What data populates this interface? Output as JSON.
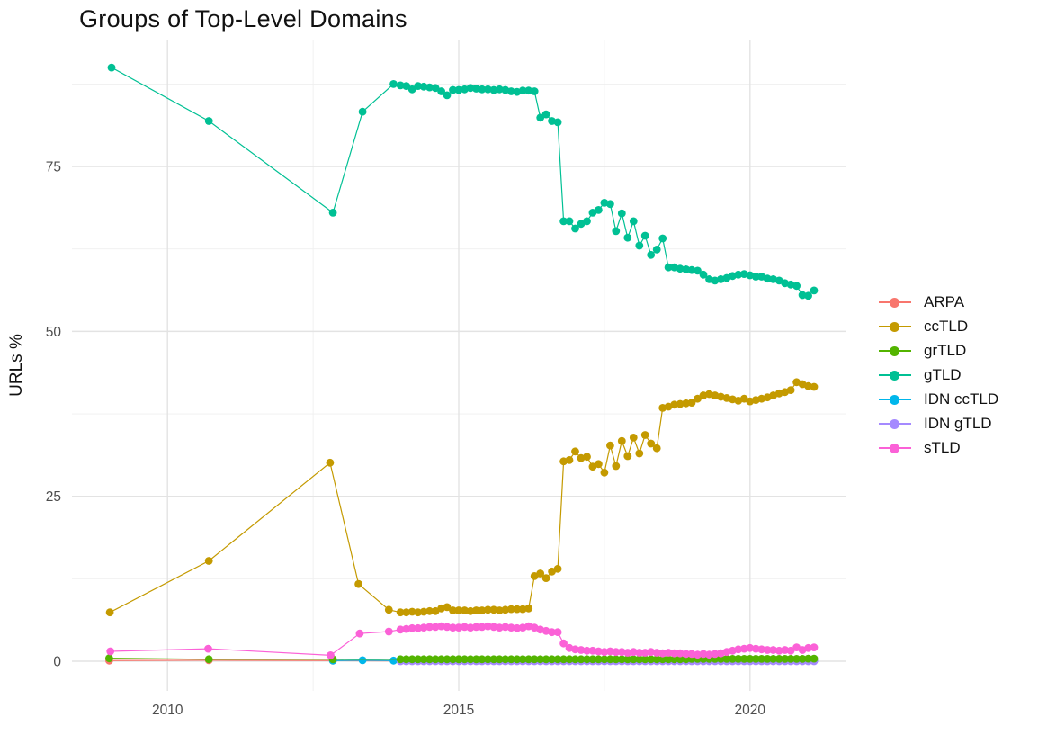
{
  "page": {
    "background": "#FFFFFF"
  },
  "style": {
    "grid_major_color": "#E3E3E3",
    "grid_minor_color": "#EFEFEF",
    "tick_label_color": "#4D4D4D",
    "text_color": "#111111"
  },
  "chart_data": {
    "type": "line",
    "title": "Groups of Top-Level Domains",
    "xlabel": "",
    "ylabel": "URLs %",
    "x_ticks": [
      2010,
      2015,
      2020
    ],
    "x_minor_gridlines": [
      2012.5,
      2017.5
    ],
    "y_ticks": [
      0,
      25,
      50,
      75
    ],
    "y_minor_gridlines": [
      12.5,
      37.5,
      62.5,
      87.5
    ],
    "xlim": [
      2008.36,
      2021.64
    ],
    "ylim": [
      -4.5,
      94.1
    ],
    "grid": true,
    "legend_position": "right",
    "point_shape": "circle",
    "dense_x_start": 2014.0,
    "dense_x_step": 0.1,
    "dense_x_end": 2021.1,
    "draw_order": [
      "ARPA",
      "IDN ccTLD",
      "IDN gTLD",
      "grTLD",
      "ccTLD",
      "gTLD",
      "sTLD"
    ],
    "series": [
      {
        "name": "ARPA",
        "color": "#F8766D",
        "early_points": [
          [
            2009.0,
            0.1
          ],
          [
            2010.71,
            0.15
          ],
          [
            2012.84,
            0.1
          ]
        ],
        "dense_constant": 0.05
      },
      {
        "name": "ccTLD",
        "color": "#C49A00",
        "early_points": [
          [
            2009.01,
            7.4
          ],
          [
            2010.71,
            15.2
          ],
          [
            2012.79,
            30.1
          ],
          [
            2013.28,
            11.7
          ],
          [
            2013.8,
            7.8
          ]
        ],
        "dense_values": [
          7.4,
          7.4,
          7.5,
          7.4,
          7.5,
          7.6,
          7.6,
          8.0,
          8.2,
          7.7,
          7.7,
          7.7,
          7.6,
          7.7,
          7.7,
          7.8,
          7.8,
          7.7,
          7.8,
          7.9,
          7.9,
          7.9,
          8.0,
          12.9,
          13.3,
          12.6,
          13.6,
          14.0,
          30.3,
          30.5,
          31.8,
          30.8,
          31.0,
          29.5,
          29.9,
          28.6,
          32.7,
          29.6,
          33.4,
          31.1,
          33.9,
          31.5,
          34.3,
          33.0,
          32.3,
          38.4,
          38.6,
          38.9,
          39.0,
          39.1,
          39.2,
          39.8,
          40.3,
          40.5,
          40.3,
          40.1,
          39.9,
          39.7,
          39.5,
          39.8,
          39.4,
          39.6,
          39.8,
          40.0,
          40.3,
          40.6,
          40.8,
          41.1,
          42.3,
          42.0,
          41.7,
          41.6
        ]
      },
      {
        "name": "grTLD",
        "color": "#53B400",
        "early_points": [
          [
            2009.0,
            0.45
          ],
          [
            2010.71,
            0.3
          ],
          [
            2012.84,
            0.3
          ]
        ],
        "dense_values": [
          0.3,
          0.3,
          0.3,
          0.3,
          0.3,
          0.3,
          0.3,
          0.3,
          0.3,
          0.3,
          0.3,
          0.3,
          0.3,
          0.3,
          0.3,
          0.3,
          0.3,
          0.3,
          0.3,
          0.3,
          0.3,
          0.3,
          0.3,
          0.3,
          0.3,
          0.3,
          0.3,
          0.3,
          0.3,
          0.3,
          0.3,
          0.3,
          0.3,
          0.3,
          0.3,
          0.3,
          0.3,
          0.3,
          0.3,
          0.3,
          0.3,
          0.3,
          0.3,
          0.3,
          0.3,
          0.3,
          0.3,
          0.3,
          0.3,
          0.3,
          0.35,
          0.35,
          0.35,
          0.35,
          0.35,
          0.35,
          0.35,
          0.35,
          0.35,
          0.35,
          0.35,
          0.35,
          0.35,
          0.35,
          0.35,
          0.35,
          0.35,
          0.35,
          0.35,
          0.35,
          0.4,
          0.4
        ]
      },
      {
        "name": "gTLD",
        "color": "#00C094",
        "early_points": [
          [
            2009.04,
            90.0
          ],
          [
            2010.71,
            81.9
          ],
          [
            2012.84,
            68.0
          ],
          [
            2013.35,
            83.3
          ],
          [
            2013.88,
            87.5
          ]
        ],
        "dense_values": [
          87.3,
          87.2,
          86.7,
          87.2,
          87.1,
          87.0,
          86.9,
          86.4,
          85.8,
          86.6,
          86.6,
          86.7,
          86.9,
          86.8,
          86.7,
          86.7,
          86.6,
          86.7,
          86.6,
          86.4,
          86.3,
          86.5,
          86.5,
          86.4,
          82.4,
          82.9,
          81.9,
          81.7,
          66.7,
          66.7,
          65.6,
          66.3,
          66.7,
          68.0,
          68.4,
          69.5,
          69.3,
          65.2,
          67.9,
          64.2,
          66.7,
          63.0,
          64.5,
          61.6,
          62.4,
          64.1,
          59.7,
          59.7,
          59.5,
          59.4,
          59.3,
          59.2,
          58.6,
          57.9,
          57.7,
          57.9,
          58.1,
          58.4,
          58.6,
          58.7,
          58.5,
          58.3,
          58.3,
          58.0,
          57.9,
          57.7,
          57.3,
          57.1,
          56.9,
          55.5,
          55.4,
          56.2
        ]
      },
      {
        "name": "IDN ccTLD",
        "color": "#00B6EB",
        "early_points": [
          [
            2012.84,
            0.1
          ],
          [
            2013.35,
            0.15
          ],
          [
            2013.88,
            0.1
          ]
        ],
        "dense_constant": 0.1
      },
      {
        "name": "IDN gTLD",
        "color": "#A58AFF",
        "early_points": [],
        "dense_constant": 0.0
      },
      {
        "name": "sTLD",
        "color": "#FB61D7",
        "early_points": [
          [
            2009.02,
            1.5
          ],
          [
            2010.7,
            1.9
          ],
          [
            2012.8,
            0.9
          ],
          [
            2013.3,
            4.2
          ],
          [
            2013.8,
            4.5
          ]
        ],
        "dense_values": [
          4.8,
          4.9,
          5.0,
          5.0,
          5.1,
          5.2,
          5.2,
          5.3,
          5.2,
          5.1,
          5.1,
          5.2,
          5.1,
          5.2,
          5.2,
          5.3,
          5.2,
          5.1,
          5.2,
          5.1,
          5.0,
          5.1,
          5.3,
          5.1,
          4.8,
          4.6,
          4.4,
          4.4,
          2.7,
          2.0,
          1.8,
          1.7,
          1.6,
          1.6,
          1.5,
          1.4,
          1.5,
          1.4,
          1.4,
          1.3,
          1.4,
          1.3,
          1.3,
          1.4,
          1.3,
          1.2,
          1.3,
          1.2,
          1.2,
          1.1,
          1.1,
          1.0,
          1.1,
          1.0,
          1.1,
          1.2,
          1.4,
          1.6,
          1.8,
          1.9,
          2.0,
          1.9,
          1.8,
          1.7,
          1.7,
          1.6,
          1.7,
          1.6,
          2.1,
          1.7,
          2.0,
          2.1
        ]
      }
    ]
  }
}
